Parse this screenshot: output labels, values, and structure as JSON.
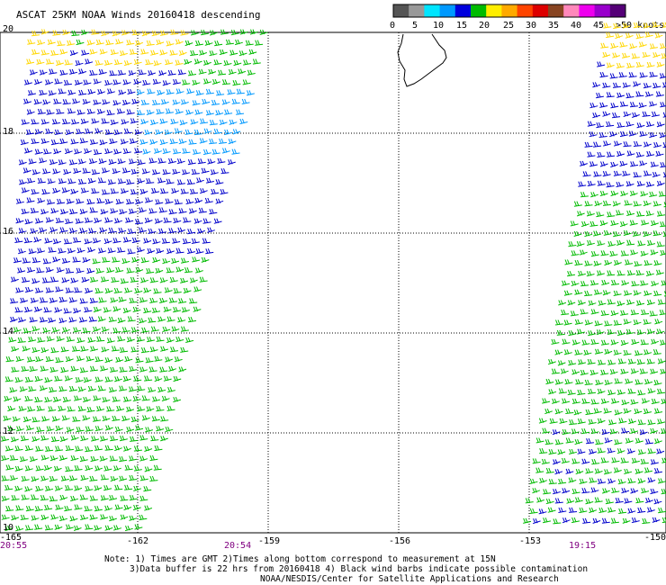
{
  "title": "ASCAT 25KM NOAA Winds 20160418 descending",
  "colorbar": {
    "tick_labels": [
      "0",
      "5",
      "10",
      "15",
      "20",
      "25",
      "30",
      "35",
      "40",
      "45",
      ">50 knots"
    ],
    "colors": [
      "#555555",
      "#999999",
      "#00e5ff",
      "#0099ff",
      "#0000dd",
      "#00bb00",
      "#ffee00",
      "#ffaa00",
      "#ff4400",
      "#dd0000",
      "#884422",
      "#ff88bb",
      "#ee00ee",
      "#9900cc",
      "#550077"
    ]
  },
  "lon_labels": [
    "-165",
    "-162",
    "-159",
    "-156",
    "-153",
    "-150"
  ],
  "lat_labels": [
    "20",
    "18",
    "16",
    "14",
    "12",
    "10"
  ],
  "time_labels": [
    "20:55",
    "20:54",
    "19:15"
  ],
  "note_lines": [
    "Note: 1) Times are GMT 2)Times along bottom correspond to measurement at 15N",
    "3)Data buffer is 22 hrs from 20160418 4) Black wind barbs indicate possible contamination",
    "NOAA/NESDIS/Center for Satellite Applications and Research"
  ],
  "barb_colors": {
    "yellow": "#ffd700",
    "green": "#00bb00",
    "blue": "#0000cc",
    "lightblue": "#0099ff"
  }
}
